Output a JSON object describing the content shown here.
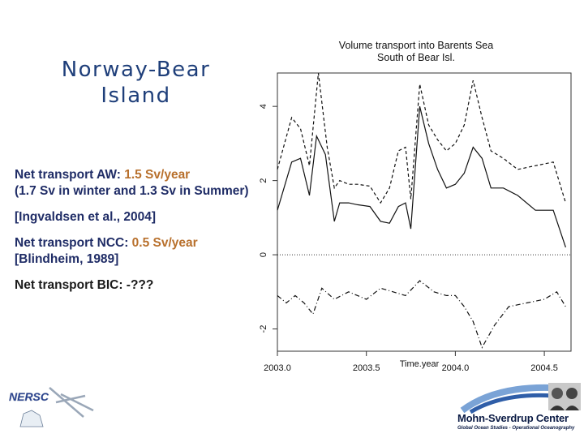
{
  "slide": {
    "title_line1": "Norway-Bear",
    "title_line2": "Island",
    "bullet1_label": "Net transport AW: ",
    "bullet1_value": "1.5 Sv/year",
    "bullet1_line2": "(1.7 Sv in winter and 1.3 Sv in Summer)",
    "bullet2": "[Ingvaldsen et al., 2004]",
    "bullet3_label": "Net transport NCC: ",
    "bullet3_value": "0.5 Sv/year",
    "bullet3_line2": "[Blindheim, 1989]",
    "bullet4_label": "Net transport BIC: ",
    "bullet4_value": "-???"
  },
  "logos": {
    "left_text": "NERSC",
    "right_name": "Mohn-Sverdrup Center",
    "right_subtitle": "Global Ocean Studies - Operational Oceanography"
  },
  "colors": {
    "title": "#1f3f7a",
    "bullet_text": "#1f2c66",
    "accent": "#b8702c"
  },
  "chart_data": {
    "type": "line",
    "title": "Volume transport into Barents Sea",
    "subtitle": "South of Bear Isl.",
    "xlabel": "Time.year",
    "ylabel": "",
    "xlim": [
      2003.0,
      2004.65
    ],
    "ylim": [
      -2.6,
      4.9
    ],
    "xticks": [
      2003.0,
      2003.5,
      2004.0,
      2004.5
    ],
    "xtick_labels": [
      "2003.0",
      "2003.5",
      "2004.0",
      "2004.5"
    ],
    "yticks": [
      -2,
      0,
      2,
      4
    ],
    "ytick_labels": [
      "-2",
      "0",
      "2",
      "4"
    ],
    "grid": false,
    "reference_line": 0,
    "series": [
      {
        "style": "solid",
        "x": [
          2003.0,
          2003.08,
          2003.13,
          2003.18,
          2003.22,
          2003.27,
          2003.32,
          2003.35,
          2003.4,
          2003.45,
          2003.52,
          2003.58,
          2003.63,
          2003.68,
          2003.72,
          2003.75,
          2003.8,
          2003.85,
          2003.9,
          2003.95,
          2004.0,
          2004.05,
          2004.1,
          2004.15,
          2004.2,
          2004.27,
          2004.35,
          2004.45,
          2004.55,
          2004.62
        ],
        "y": [
          1.2,
          2.5,
          2.6,
          1.6,
          3.2,
          2.7,
          0.9,
          1.4,
          1.4,
          1.35,
          1.3,
          0.9,
          0.85,
          1.3,
          1.4,
          0.7,
          4.0,
          3.0,
          2.3,
          1.8,
          1.9,
          2.2,
          2.9,
          2.6,
          1.8,
          1.8,
          1.6,
          1.2,
          1.2,
          0.2
        ]
      },
      {
        "style": "dashed",
        "x": [
          2003.0,
          2003.08,
          2003.13,
          2003.18,
          2003.23,
          2003.28,
          2003.32,
          2003.35,
          2003.4,
          2003.45,
          2003.52,
          2003.58,
          2003.63,
          2003.68,
          2003.72,
          2003.75,
          2003.8,
          2003.85,
          2003.9,
          2003.95,
          2004.0,
          2004.05,
          2004.1,
          2004.15,
          2004.2,
          2004.27,
          2004.35,
          2004.45,
          2004.55,
          2004.62
        ],
        "y": [
          2.3,
          3.7,
          3.4,
          2.4,
          4.9,
          2.9,
          1.8,
          2.0,
          1.9,
          1.9,
          1.85,
          1.4,
          1.8,
          2.8,
          2.9,
          1.5,
          4.6,
          3.5,
          3.1,
          2.8,
          3.0,
          3.5,
          4.7,
          3.7,
          2.8,
          2.6,
          2.3,
          2.4,
          2.5,
          1.4
        ]
      },
      {
        "style": "dashdot",
        "x": [
          2003.0,
          2003.05,
          2003.1,
          2003.15,
          2003.2,
          2003.25,
          2003.32,
          2003.4,
          2003.5,
          2003.58,
          2003.65,
          2003.72,
          2003.8,
          2003.88,
          2003.95,
          2004.0,
          2004.05,
          2004.1,
          2004.15,
          2004.22,
          2004.3,
          2004.4,
          2004.5,
          2004.57,
          2004.62
        ],
        "y": [
          -1.1,
          -1.3,
          -1.1,
          -1.3,
          -1.6,
          -0.9,
          -1.2,
          -1.0,
          -1.2,
          -0.9,
          -1.0,
          -1.1,
          -0.7,
          -1.0,
          -1.1,
          -1.1,
          -1.4,
          -1.8,
          -2.5,
          -1.9,
          -1.4,
          -1.3,
          -1.2,
          -1.0,
          -1.4
        ]
      }
    ]
  }
}
